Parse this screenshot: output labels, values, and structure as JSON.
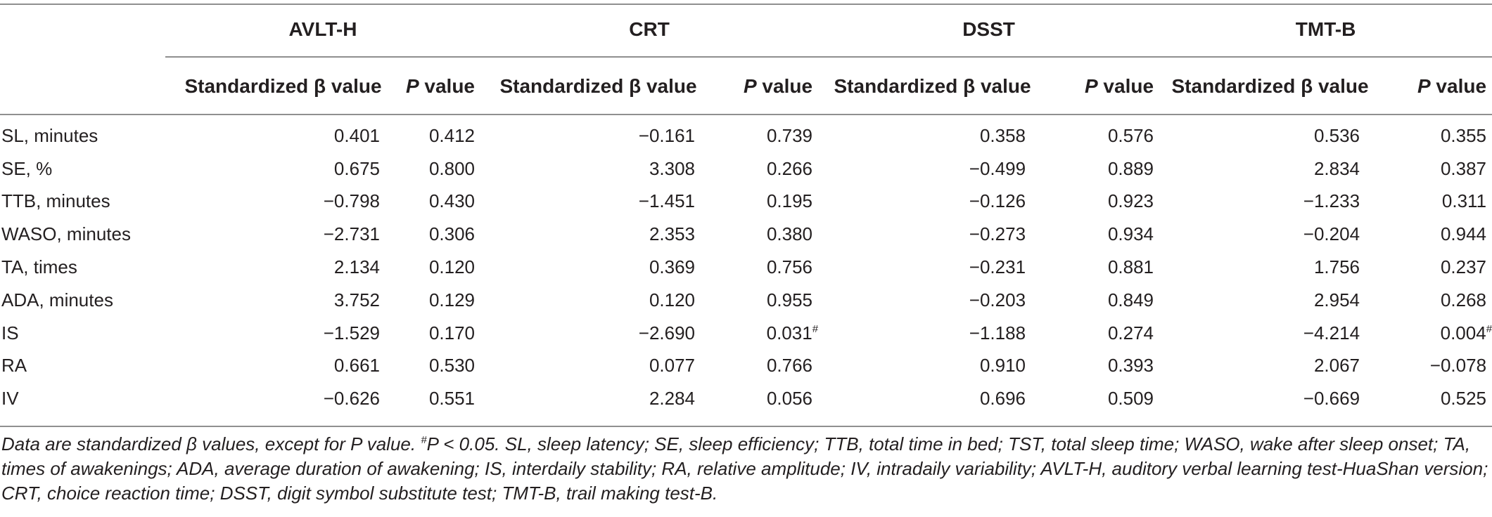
{
  "groups": [
    "AVLT-H",
    "CRT",
    "DSST",
    "TMT-B"
  ],
  "subheaders": {
    "beta": "Standardized β value",
    "p_italic": "P",
    "p_rest": " value"
  },
  "rows": [
    {
      "label": "SL, minutes",
      "cells": [
        "0.401",
        "0.412",
        "−0.161",
        "0.739",
        "0.358",
        "0.576",
        "0.536",
        "0.355"
      ]
    },
    {
      "label": "SE, %",
      "cells": [
        "0.675",
        "0.800",
        "3.308",
        "0.266",
        "−0.499",
        "0.889",
        "2.834",
        "0.387"
      ]
    },
    {
      "label": "TTB, minutes",
      "cells": [
        "−0.798",
        "0.430",
        "−1.451",
        "0.195",
        "−0.126",
        "0.923",
        "−1.233",
        "0.311"
      ]
    },
    {
      "label": "WASO, minutes",
      "cells": [
        "−2.731",
        "0.306",
        "2.353",
        "0.380",
        "−0.273",
        "0.934",
        "−0.204",
        "0.944"
      ]
    },
    {
      "label": "TA, times",
      "cells": [
        "2.134",
        "0.120",
        "0.369",
        "0.756",
        "−0.231",
        "0.881",
        "1.756",
        "0.237"
      ]
    },
    {
      "label": "ADA, minutes",
      "cells": [
        "3.752",
        "0.129",
        "0.120",
        "0.955",
        "−0.203",
        "0.849",
        "2.954",
        "0.268"
      ]
    },
    {
      "label": "IS",
      "cells": [
        "−1.529",
        "0.170",
        "−2.690",
        "0.031",
        "−1.188",
        "0.274",
        "−4.214",
        "0.004"
      ],
      "sig": [
        false,
        false,
        false,
        true,
        false,
        false,
        false,
        true
      ]
    },
    {
      "label": "RA",
      "cells": [
        "0.661",
        "0.530",
        "0.077",
        "0.766",
        "0.910",
        "0.393",
        "2.067",
        "−0.078"
      ]
    },
    {
      "label": "IV",
      "cells": [
        "−0.626",
        "0.551",
        "2.284",
        "0.056",
        "0.696",
        "0.509",
        "−0.669",
        "0.525"
      ]
    }
  ],
  "sig_mark": "#",
  "footnote": {
    "part1": "Data are standardized β values, except for P value. ",
    "mark": "#",
    "part2": "P < 0.05. SL, sleep latency; SE, sleep efficiency; TTB, total time in bed; TST, total sleep time; WASO, wake after sleep onset; TA, times of awakenings; ADA, average duration of awakening; IS, interdaily stability; RA, relative amplitude; IV, intradaily variability; AVLT-H, auditory verbal learning test-HuaShan version; CRT, choice reaction time; DSST, digit symbol substitute test; TMT-B, trail making test-B."
  }
}
